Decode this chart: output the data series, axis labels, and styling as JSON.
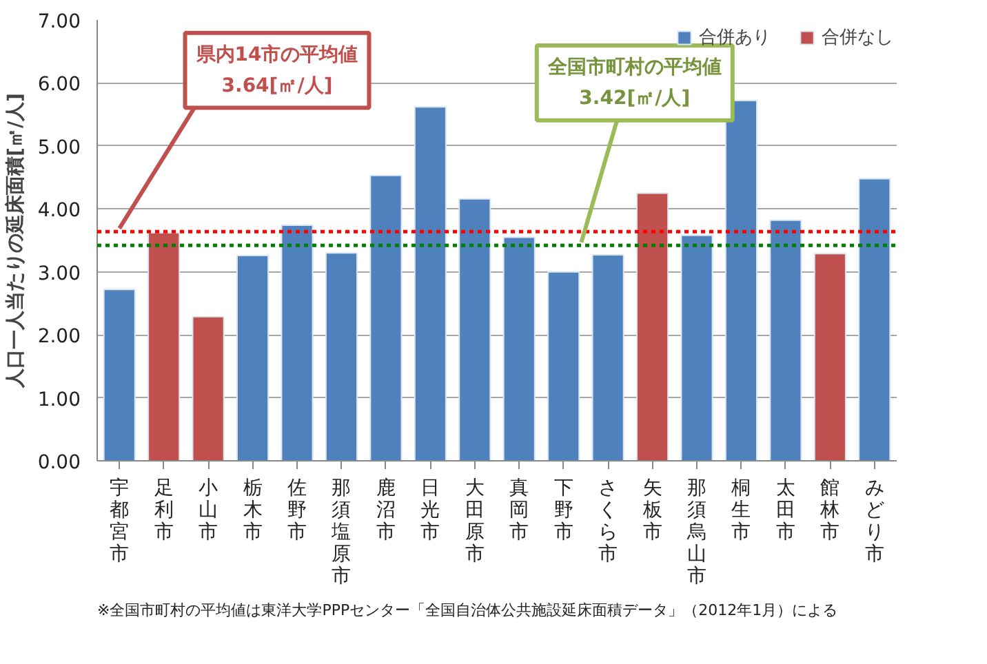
{
  "chart_data": {
    "type": "bar",
    "ylabel": "人口一人当たりの延床面積[㎡/人]",
    "categories": [
      "宇都宮市",
      "足利市",
      "小山市",
      "栃木市",
      "佐野市",
      "那須塩原市",
      "鹿沼市",
      "日光市",
      "大田原市",
      "真岡市",
      "下野市",
      "さくら市",
      "矢板市",
      "那須烏山市",
      "桐生市",
      "太田市",
      "館林市",
      "みどり市"
    ],
    "series": [
      {
        "name": "合併あり",
        "color": "#4f81bd",
        "values": [
          2.72,
          null,
          null,
          3.26,
          3.74,
          3.3,
          4.53,
          5.62,
          4.16,
          3.55,
          3.0,
          3.27,
          null,
          3.58,
          5.72,
          3.82,
          null,
          4.48
        ]
      },
      {
        "name": "合併なし",
        "color": "#c0504d",
        "values": [
          null,
          3.62,
          2.29,
          null,
          null,
          null,
          null,
          null,
          null,
          null,
          null,
          null,
          4.25,
          null,
          null,
          null,
          3.29,
          null
        ]
      }
    ],
    "ylim": [
      0,
      7
    ],
    "yticks": [
      {
        "value": 0,
        "label": "0.00"
      },
      {
        "value": 1,
        "label": "1.00"
      },
      {
        "value": 2,
        "label": "2.00"
      },
      {
        "value": 3,
        "label": "3.00"
      },
      {
        "value": 4,
        "label": "4.00"
      },
      {
        "value": 5,
        "label": "5.00"
      },
      {
        "value": 6,
        "label": "6.00"
      },
      {
        "value": 7,
        "label": "7.00"
      }
    ],
    "ref_lines": [
      {
        "axis": "y",
        "value": 3.64,
        "label": "県内14市の平均値\n3.64[㎡/人]",
        "color": "#ff0000",
        "line_style": "dotted"
      },
      {
        "axis": "y",
        "value": 3.42,
        "label": "全国市町村の平均値\n3.42[㎡/人]",
        "color": "#008000",
        "line_style": "dotted"
      }
    ],
    "annotations": [
      "※全国市町村の平均値は東洋大学PPPセンター「全国自治体公共施設延床面積データ」（2012年1月）による"
    ],
    "grid": "y",
    "legend": "top right"
  }
}
